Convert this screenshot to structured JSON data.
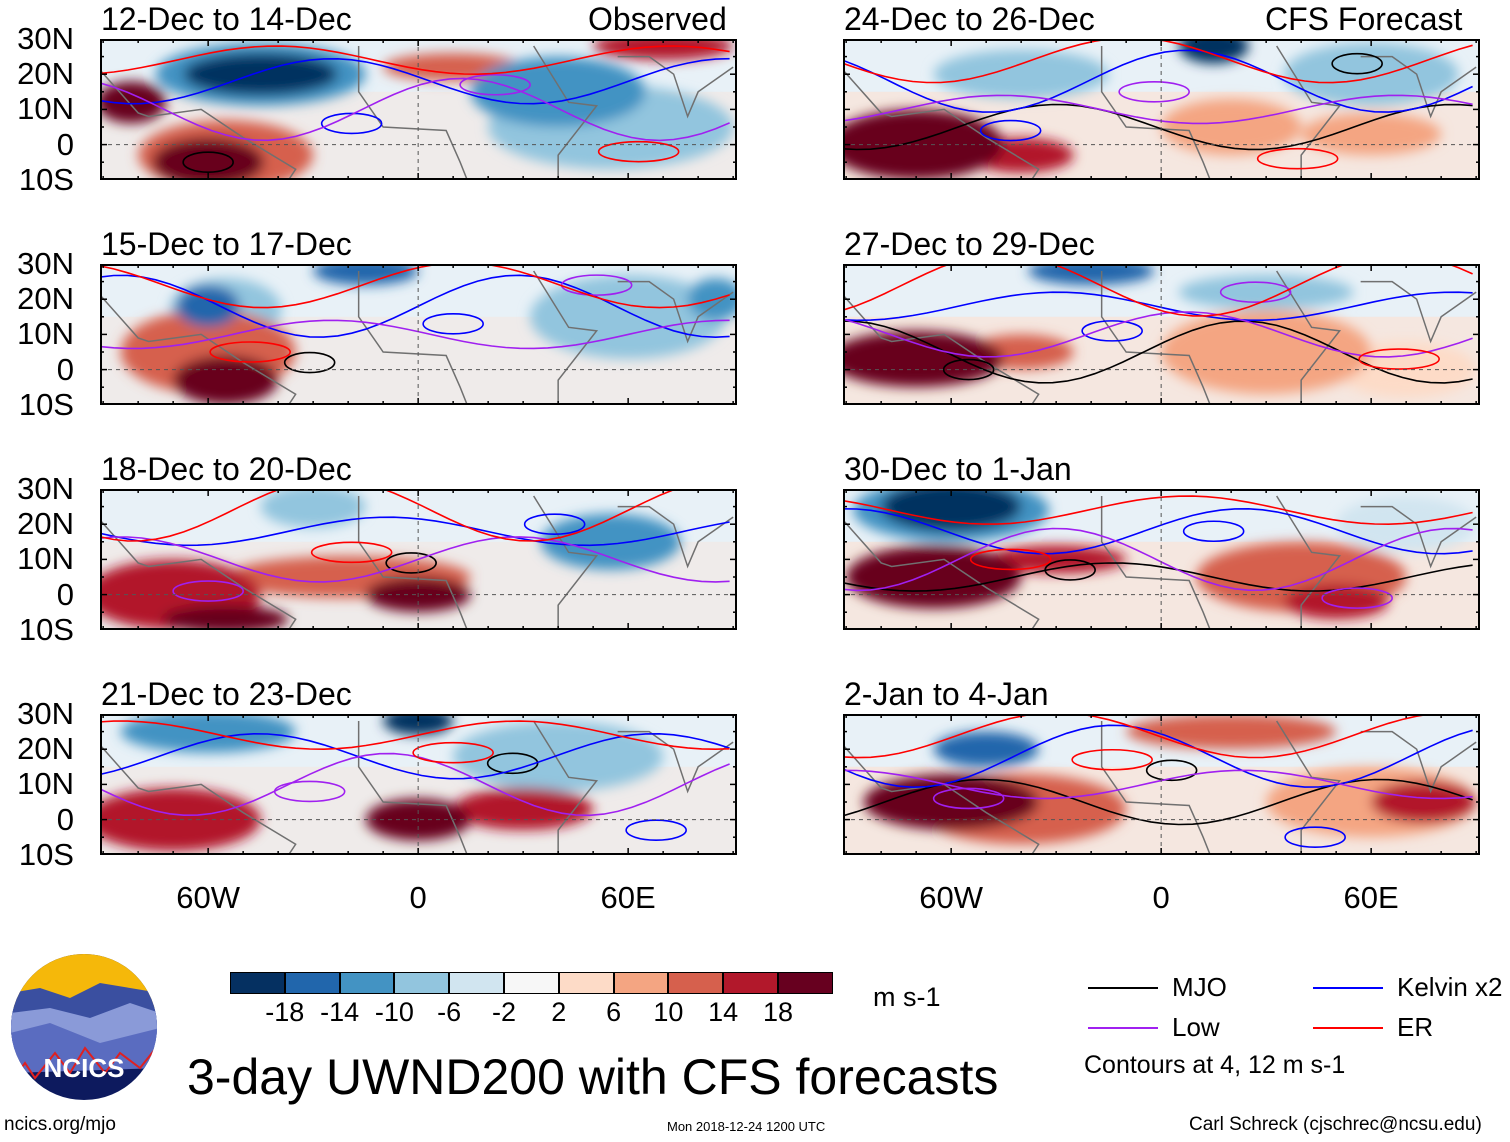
{
  "figure": {
    "title": "3-day UWND200 with CFS forecasts",
    "left_label": "Observed",
    "right_label": "CFS Forecast",
    "panels_left": [
      "12-Dec to 14-Dec",
      "15-Dec to 17-Dec",
      "18-Dec to 20-Dec",
      "21-Dec to 23-Dec"
    ],
    "panels_right": [
      "24-Dec to 26-Dec",
      "27-Dec to 29-Dec",
      "30-Dec to 1-Jan",
      "2-Jan to 4-Jan"
    ],
    "lat_ticks": [
      "30N",
      "20N",
      "10N",
      "0",
      "10S"
    ],
    "lon_ticks": [
      "60W",
      "0",
      "60E"
    ]
  },
  "colorbar": {
    "colors": [
      "#053061",
      "#2166ac",
      "#4393c3",
      "#92c5de",
      "#d1e5f0",
      "#f7f7f7",
      "#fddbc7",
      "#f4a582",
      "#d6604d",
      "#b2182b",
      "#67001f"
    ],
    "labels": [
      "-18",
      "-14",
      "-10",
      "-6",
      "-2",
      "2",
      "6",
      "10",
      "14",
      "18"
    ],
    "units": "m s-1"
  },
  "legend": {
    "items": [
      {
        "label": "MJO",
        "color": "#000000"
      },
      {
        "label": "Kelvin x2",
        "color": "#0000ff"
      },
      {
        "label": "Low",
        "color": "#a020f0"
      },
      {
        "label": "ER",
        "color": "#ff0000"
      }
    ],
    "note": "Contours at 4, 12 m s-1"
  },
  "logo": {
    "text": "NCICS"
  },
  "footer": {
    "url": "ncics.org/mjo",
    "timestamp": "Mon 2018-12-24 1200 UTC",
    "author": "Carl Schreck (cjschrec@ncsu.edu)"
  }
}
